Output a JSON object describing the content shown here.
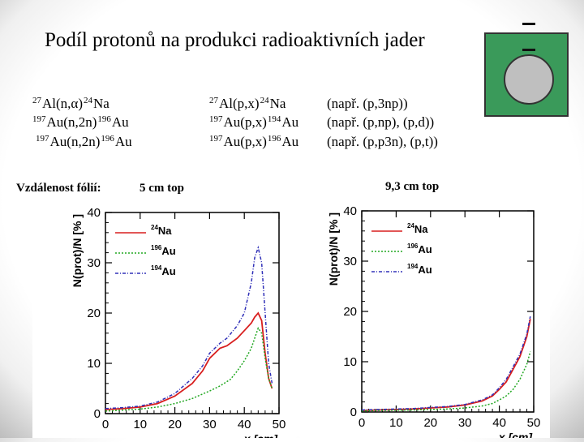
{
  "title": "Podíl protonů na produkci radioaktivních jader",
  "left_reactions": [
    {
      "pre": "27",
      "a": "Al(n,α)",
      "mid": "24",
      "b": "Na"
    },
    {
      "pre": "197",
      "a": "Au(n,2n)",
      "mid": "196",
      "b": "Au"
    },
    {
      "pre": "197",
      "a": "Au(n,2n)",
      "mid": "196",
      "b": "Au"
    }
  ],
  "right_reactions": [
    {
      "pre": "27",
      "a": "Al(p,x)",
      "mid": "24",
      "b": "Na",
      "note": "(např. (p,3np))"
    },
    {
      "pre": "197",
      "a": "Au(p,x)",
      "mid": "194",
      "b": "Au",
      "note": "(např. (p,np), (p,d))"
    },
    {
      "pre": "197",
      "a": "Au(p,x)",
      "mid": "196",
      "b": "Au",
      "note": "(např. (p,p3n), (p,t))"
    }
  ],
  "labels": {
    "distance": "Vzdálenost fólií:",
    "left_dist": "5 cm top",
    "right_dist": "9,3 cm top"
  },
  "colors": {
    "na24": "#d81e1e",
    "au196": "#22a822",
    "au194": "#3030b8",
    "icon_bg": "#3a9a5a"
  },
  "chart_data": [
    {
      "type": "line",
      "xlabel": "x [cm]",
      "ylabel": "N(prot)/N [% ]",
      "xlim": [
        0,
        50
      ],
      "ylim": [
        0,
        40
      ],
      "xticks": [
        "0",
        "10",
        "20",
        "30",
        "40",
        "50"
      ],
      "yticks": [
        "0",
        "10",
        "20",
        "30",
        "40"
      ],
      "legend_position": "top-left",
      "series": [
        {
          "name": "24Na",
          "sup": "24",
          "base": "Na",
          "color": "#d81e1e",
          "dash": "solid",
          "x": [
            0,
            5,
            10,
            15,
            20,
            25,
            28,
            30,
            33,
            35,
            38,
            40,
            42,
            43,
            44,
            45,
            46,
            47,
            48
          ],
          "y": [
            0.8,
            1.0,
            1.3,
            2.0,
            3.5,
            6.0,
            8.5,
            11,
            13,
            13.5,
            15,
            16.5,
            18,
            19.2,
            20,
            18.5,
            12,
            7,
            5
          ]
        },
        {
          "name": "196Au",
          "sup": "196",
          "base": "Au",
          "color": "#22a822",
          "dash": "dotted",
          "x": [
            0,
            5,
            10,
            15,
            20,
            25,
            30,
            33,
            36,
            38,
            40,
            42,
            43,
            44,
            45,
            46,
            47,
            48
          ],
          "y": [
            0.5,
            0.7,
            0.9,
            1.3,
            2.0,
            3.0,
            4.5,
            5.5,
            6.8,
            8.5,
            10.5,
            13,
            15,
            17,
            16,
            11,
            7,
            5
          ]
        },
        {
          "name": "194Au",
          "sup": "194",
          "base": "Au",
          "color": "#3030b8",
          "dash": "dashdot",
          "x": [
            0,
            5,
            10,
            15,
            20,
            25,
            28,
            30,
            33,
            35,
            38,
            40,
            42,
            43,
            44,
            45,
            46,
            47,
            48
          ],
          "y": [
            1.0,
            1.2,
            1.5,
            2.3,
            4.0,
            7.0,
            9.5,
            12,
            14,
            15,
            17.5,
            20,
            26,
            31,
            33,
            30,
            20,
            10,
            6
          ]
        }
      ]
    },
    {
      "type": "line",
      "xlabel": "x [cm]",
      "ylabel": "N(prot)/N [% ]",
      "xlim": [
        0,
        50
      ],
      "ylim": [
        0,
        40
      ],
      "xticks": [
        "0",
        "10",
        "20",
        "30",
        "40",
        "50"
      ],
      "yticks": [
        "0",
        "10",
        "20",
        "30",
        "40"
      ],
      "legend_position": "top-left",
      "series": [
        {
          "name": "24Na",
          "sup": "24",
          "base": "Na",
          "color": "#d81e1e",
          "dash": "solid",
          "x": [
            0,
            5,
            10,
            15,
            20,
            25,
            30,
            35,
            38,
            40,
            42,
            44,
            46,
            48,
            49
          ],
          "y": [
            0.3,
            0.4,
            0.5,
            0.6,
            0.8,
            1.0,
            1.4,
            2.2,
            3.2,
            4.5,
            6.0,
            8.5,
            11,
            15,
            18.5
          ]
        },
        {
          "name": "196Au",
          "sup": "196",
          "base": "Au",
          "color": "#22a822",
          "dash": "dotted",
          "x": [
            0,
            5,
            10,
            15,
            20,
            25,
            30,
            35,
            38,
            40,
            42,
            44,
            46,
            48,
            49
          ],
          "y": [
            0.2,
            0.3,
            0.35,
            0.4,
            0.5,
            0.6,
            0.8,
            1.2,
            1.7,
            2.4,
            3.2,
            4.5,
            6.5,
            9.5,
            12
          ]
        },
        {
          "name": "194Au",
          "sup": "194",
          "base": "Au",
          "color": "#3030b8",
          "dash": "dashdot",
          "x": [
            0,
            5,
            10,
            15,
            20,
            25,
            30,
            35,
            38,
            40,
            42,
            44,
            46,
            48,
            49
          ],
          "y": [
            0.4,
            0.5,
            0.6,
            0.7,
            0.9,
            1.1,
            1.5,
            2.4,
            3.4,
            4.8,
            6.5,
            9.0,
            11.5,
            15.5,
            19
          ]
        }
      ]
    }
  ]
}
